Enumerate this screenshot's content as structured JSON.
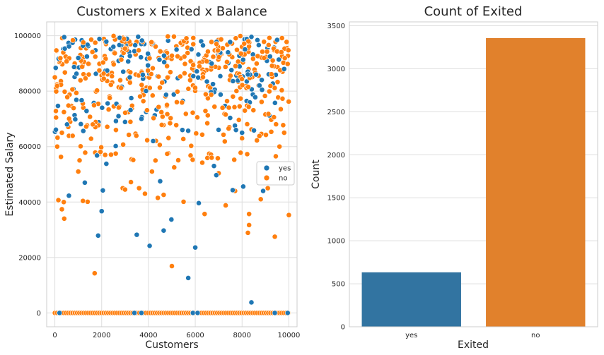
{
  "chart_data": [
    {
      "type": "scatter",
      "title": "Customers x Exited x Balance",
      "xlabel": "Customers",
      "ylabel": "Estimated Salary",
      "xlim": [
        -350,
        10350
      ],
      "ylim": [
        -5000,
        105000
      ],
      "xticks": [
        0,
        2000,
        4000,
        6000,
        8000,
        10000
      ],
      "yticks": [
        0,
        20000,
        40000,
        60000,
        80000,
        100000
      ],
      "grid": true,
      "legend": {
        "position": "right-center",
        "entries": [
          "yes",
          "no"
        ]
      },
      "series": [
        {
          "name": "yes",
          "color": "#1f77b4",
          "points": [
            [
              520,
              68000
            ],
            [
              600,
              42300
            ],
            [
              1280,
              47000
            ],
            [
              1800,
              56800
            ],
            [
              1850,
              27900
            ],
            [
              2000,
              36700
            ],
            [
              2050,
              44200
            ],
            [
              2200,
              53800
            ],
            [
              2600,
              60200
            ],
            [
              3000,
              68900
            ],
            [
              3500,
              28200
            ],
            [
              3700,
              70000
            ],
            [
              4050,
              24200
            ],
            [
              4200,
              62000
            ],
            [
              4500,
              47500
            ],
            [
              4650,
              29700
            ],
            [
              4980,
              33700
            ],
            [
              5450,
              66000
            ],
            [
              5700,
              12600
            ],
            [
              6000,
              23600
            ],
            [
              6150,
              39600
            ],
            [
              6800,
              53000
            ],
            [
              6900,
              49700
            ],
            [
              7600,
              44300
            ],
            [
              8000,
              65000
            ],
            [
              8050,
              45600
            ],
            [
              8400,
              3800
            ],
            [
              8900,
              44000
            ],
            [
              9100,
              53000
            ],
            [
              9300,
              47800
            ],
            [
              9800,
              88000
            ],
            [
              1000,
              92000
            ],
            [
              3200,
              85000
            ],
            [
              5200,
              95000
            ],
            [
              6700,
              90000
            ],
            [
              7400,
              94000
            ],
            [
              8600,
              86000
            ],
            [
              9500,
              98500
            ],
            [
              2500,
              96000
            ],
            [
              400,
              99500
            ]
          ],
          "zero_band": [
            200,
            3400,
            3700,
            5900,
            6100,
            9400,
            9950
          ]
        },
        {
          "name": "no",
          "color": "#ff7f0e",
          "points": [
            [
              0,
              85000
            ],
            [
              50,
              70500
            ],
            [
              100,
              60000
            ],
            [
              150,
              40700
            ],
            [
              260,
              56300
            ],
            [
              300,
              37400
            ],
            [
              380,
              40000
            ],
            [
              400,
              34000
            ],
            [
              600,
              63900
            ],
            [
              760,
              63900
            ],
            [
              1000,
              51000
            ],
            [
              1100,
              60100
            ],
            [
              1200,
              40400
            ],
            [
              1400,
              40100
            ],
            [
              1620,
              68000
            ],
            [
              1700,
              14300
            ],
            [
              1950,
              58100
            ],
            [
              2150,
              57000
            ],
            [
              2400,
              57100
            ],
            [
              2900,
              45000
            ],
            [
              3000,
              44500
            ],
            [
              3250,
              47200
            ],
            [
              3600,
              45000
            ],
            [
              3850,
              43000
            ],
            [
              4150,
              51000
            ],
            [
              4300,
              55000
            ],
            [
              4400,
              41500
            ],
            [
              4650,
              42600
            ],
            [
              4800,
              57400
            ],
            [
              5000,
              16900
            ],
            [
              5100,
              52500
            ],
            [
              5500,
              40100
            ],
            [
              5800,
              56800
            ],
            [
              6300,
              54200
            ],
            [
              6400,
              35700
            ],
            [
              6700,
              56000
            ],
            [
              7000,
              50400
            ],
            [
              7300,
              38800
            ],
            [
              7700,
              44000
            ],
            [
              8000,
              63000
            ],
            [
              8300,
              35700
            ],
            [
              8300,
              31700
            ],
            [
              8250,
              28900
            ],
            [
              8800,
              41000
            ],
            [
              9100,
              45000
            ],
            [
              9300,
              50000
            ],
            [
              9400,
              27500
            ],
            [
              9600,
              60000
            ],
            [
              9800,
              65000
            ],
            [
              10000,
              35300
            ]
          ],
          "zero_band": [
            0,
            10000
          ]
        }
      ]
    },
    {
      "type": "bar",
      "title": "Count of Exited",
      "xlabel": "Exited",
      "ylabel": "Count",
      "categories": [
        "yes",
        "no"
      ],
      "values": [
        633,
        3357
      ],
      "colors": [
        "#3274a1",
        "#e1812c"
      ],
      "ylim": [
        0,
        3545
      ],
      "yticks": [
        0,
        500,
        1000,
        1500,
        2000,
        2500,
        3000,
        3500
      ],
      "grid": true
    }
  ]
}
